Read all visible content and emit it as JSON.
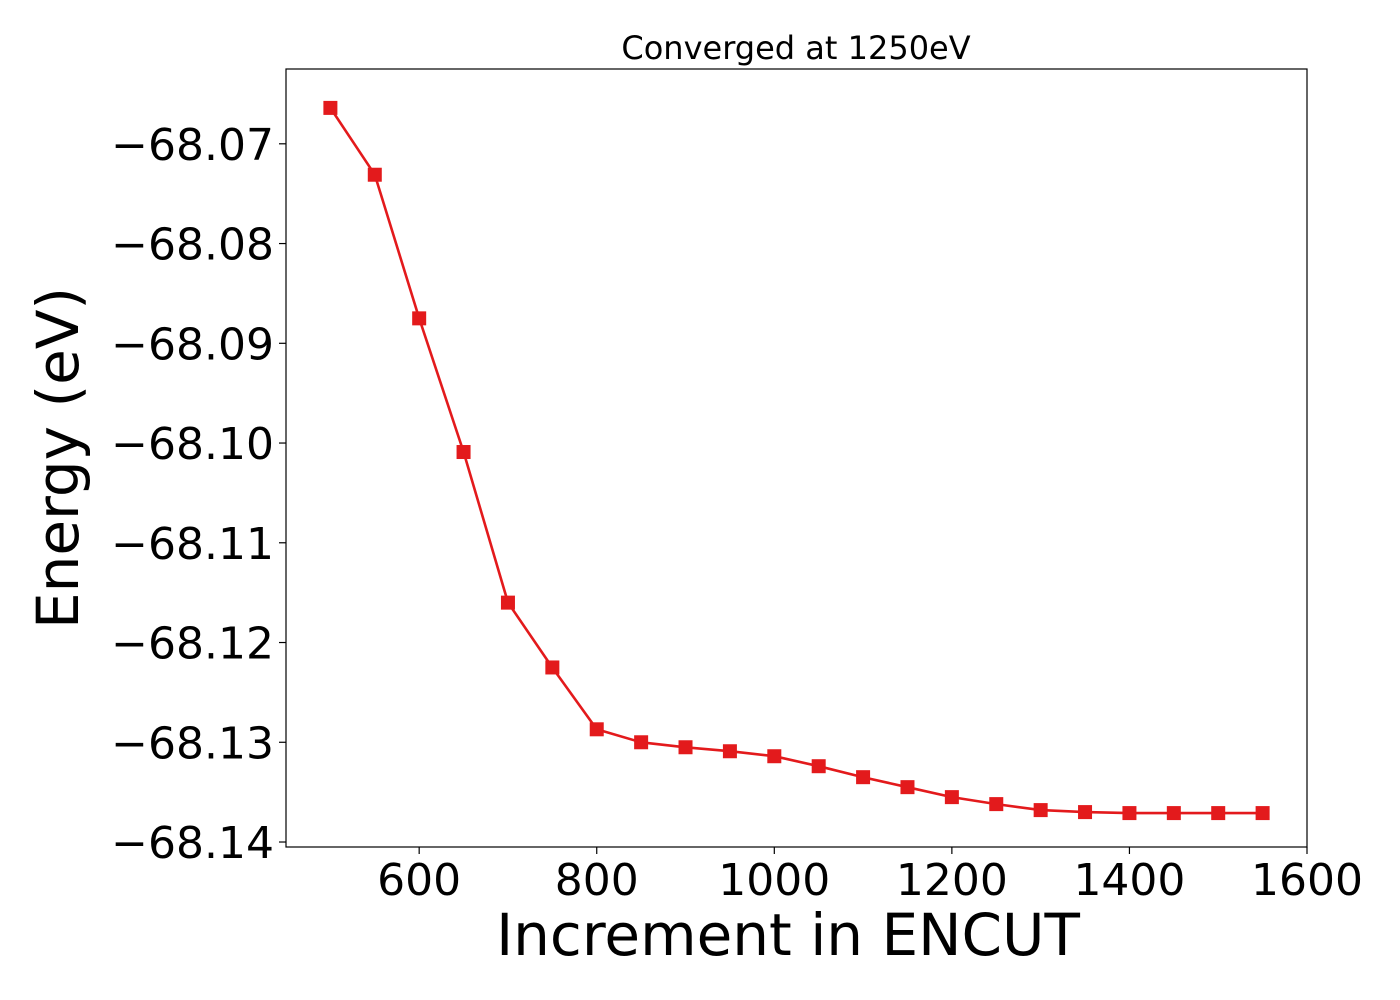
{
  "chart_data": {
    "type": "line",
    "title": "Converged at 1250eV",
    "xlabel": "Increment in ENCUT",
    "ylabel": "Energy (eV)",
    "xlim": [
      450,
      1600
    ],
    "ylim": [
      -68.1405,
      -68.0625
    ],
    "xticks": [
      600,
      800,
      1000,
      1200,
      1400,
      1600
    ],
    "xtick_labels": [
      "600",
      "800",
      "1000",
      "1200",
      "1400",
      "1600"
    ],
    "yticks": [
      -68.07,
      -68.08,
      -68.09,
      -68.1,
      -68.11,
      -68.12,
      -68.13,
      -68.14
    ],
    "ytick_labels": [
      "−68.07",
      "−68.08",
      "−68.09",
      "−68.10",
      "−68.11",
      "−68.12",
      "−68.13",
      "−68.14"
    ],
    "grid": false,
    "series": [
      {
        "color": "#e31a1c",
        "marker": "square",
        "x": [
          500,
          550,
          600,
          650,
          700,
          750,
          800,
          850,
          900,
          950,
          1000,
          1050,
          1100,
          1150,
          1200,
          1250,
          1300,
          1350,
          1400,
          1450,
          1500,
          1550
        ],
        "y": [
          -68.0664,
          -68.0731,
          -68.0875,
          -68.1009,
          -68.116,
          -68.1225,
          -68.1287,
          -68.13,
          -68.1305,
          -68.1309,
          -68.1314,
          -68.1324,
          -68.1335,
          -68.1345,
          -68.1355,
          -68.1362,
          -68.1368,
          -68.137,
          -68.1371,
          -68.1371,
          -68.1371,
          -68.1371
        ]
      }
    ]
  }
}
